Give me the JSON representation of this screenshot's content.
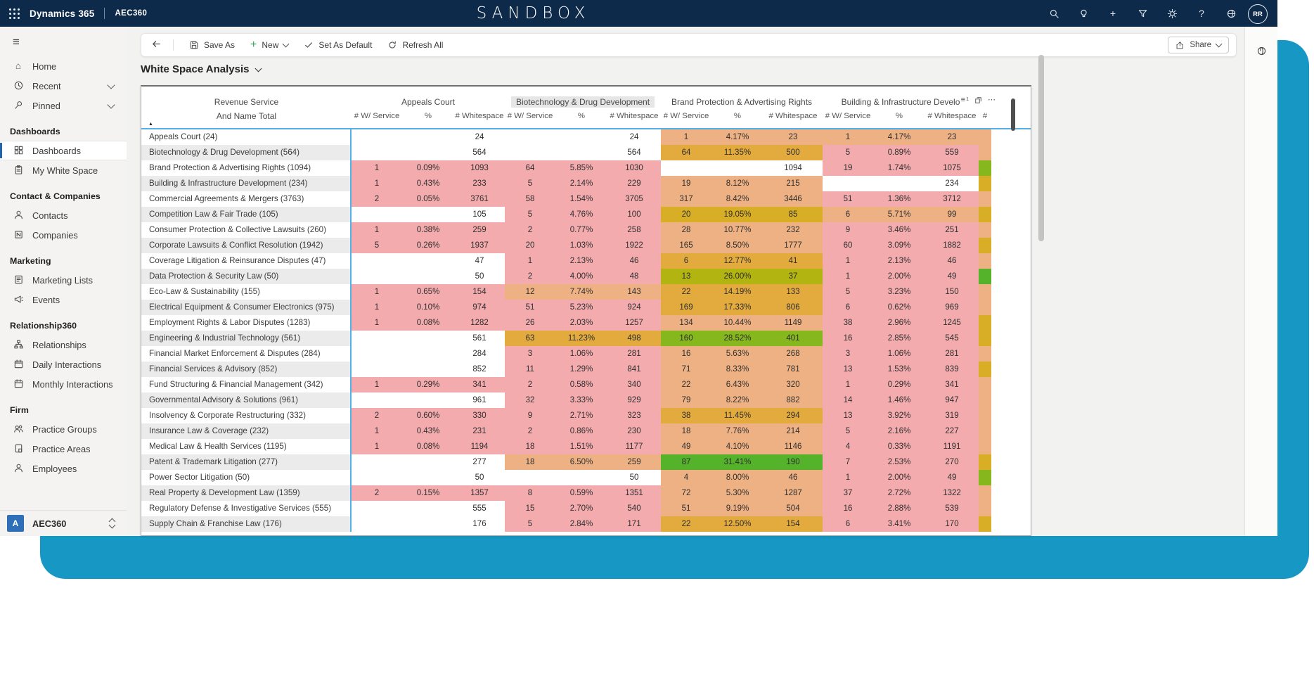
{
  "topbar": {
    "brand": "Dynamics 365",
    "app": "AEC360",
    "environment": "SANDBOX",
    "avatar_initials": "RR",
    "icons": [
      "search-icon",
      "lightbulb-icon",
      "add-icon",
      "funnel-icon",
      "settings-icon",
      "help-icon",
      "feedback-icon"
    ]
  },
  "commandbar": {
    "save_as": "Save As",
    "new": "New",
    "set_as_default": "Set As Default",
    "refresh_all": "Refresh All",
    "share": "Share"
  },
  "page": {
    "title": "White Space Analysis"
  },
  "sidebar": {
    "sections": [
      {
        "header": "",
        "items": [
          {
            "label": "Home",
            "icon": "home-icon"
          },
          {
            "label": "Recent",
            "icon": "clock-icon",
            "chevron": true
          },
          {
            "label": "Pinned",
            "icon": "pin-icon",
            "chevron": true
          }
        ]
      },
      {
        "header": "Dashboards",
        "items": [
          {
            "label": "Dashboards",
            "icon": "dashboards-icon",
            "selected": true
          },
          {
            "label": "My White Space",
            "icon": "clipboard-icon"
          }
        ]
      },
      {
        "header": "Contact & Companies",
        "items": [
          {
            "label": "Contacts",
            "icon": "person-icon"
          },
          {
            "label": "Companies",
            "icon": "company-icon"
          }
        ]
      },
      {
        "header": "Marketing",
        "items": [
          {
            "label": "Marketing Lists",
            "icon": "list-icon"
          },
          {
            "label": "Events",
            "icon": "megaphone-icon"
          }
        ]
      },
      {
        "header": "Relationship360",
        "items": [
          {
            "label": "Relationships",
            "icon": "orgchart-icon"
          },
          {
            "label": "Daily Interactions",
            "icon": "calendar-icon"
          },
          {
            "label": "Monthly Interactions",
            "icon": "calendar-icon"
          }
        ]
      },
      {
        "header": "Firm",
        "items": [
          {
            "label": "Practice Groups",
            "icon": "people-icon"
          },
          {
            "label": "Practice Areas",
            "icon": "doc-icon"
          },
          {
            "label": "Employees",
            "icon": "person-icon"
          }
        ]
      }
    ],
    "app_switcher": {
      "initial": "A",
      "label": "AEC360"
    }
  },
  "table": {
    "col1": {
      "line1": "Revenue Service",
      "line2": "And Name Total"
    },
    "groups": [
      "Appeals Court",
      "Biotechnology & Drug Development",
      "Brand Protection & Advertising Rights",
      "Building & Infrastructure Develo"
    ],
    "highlighted_group": 1,
    "subheaders": [
      "# W/ Service",
      "%",
      "# Whitespace"
    ],
    "next_group_partial": "#",
    "corner_icons": [
      "filter-icon",
      "focus-mode-icon",
      "more-options-icon"
    ],
    "cell_colors": {
      "white": "#ffffff",
      "pink": "#f3abae",
      "tan": "#eeb183",
      "amber": "#e3aa3e",
      "darkamber": "#d8ae27",
      "olive": "#b2b411",
      "green": "#86b81e",
      "brightgreen": "#54b32a"
    },
    "rows": [
      {
        "label": "Appeals Court (24)",
        "groups": [
          [
            "",
            "",
            24,
            "white"
          ],
          [
            "",
            "",
            24,
            "white"
          ],
          [
            "1",
            "4.17%",
            23,
            "tan"
          ],
          [
            "1",
            "4.17%",
            23,
            "tan"
          ]
        ],
        "strip": "tan"
      },
      {
        "label": "Biotechnology & Drug Development (564)",
        "groups": [
          [
            "",
            "",
            564,
            "white"
          ],
          [
            "",
            "",
            564,
            "white"
          ],
          [
            "64",
            "11.35%",
            500,
            "amber"
          ],
          [
            "5",
            "0.89%",
            559,
            "pink"
          ]
        ],
        "strip": "tan"
      },
      {
        "label": "Brand Protection & Advertising Rights (1094)",
        "groups": [
          [
            "1",
            "0.09%",
            1093,
            "pink"
          ],
          [
            "64",
            "5.85%",
            1030,
            "pink"
          ],
          [
            "",
            "",
            1094,
            "white"
          ],
          [
            "19",
            "1.74%",
            1075,
            "pink"
          ]
        ],
        "strip": "green"
      },
      {
        "label": "Building & Infrastructure Development (234)",
        "groups": [
          [
            "1",
            "0.43%",
            233,
            "pink"
          ],
          [
            "5",
            "2.14%",
            229,
            "pink"
          ],
          [
            "19",
            "8.12%",
            215,
            "tan"
          ],
          [
            "",
            "",
            234,
            "white"
          ]
        ],
        "strip": "darkamber"
      },
      {
        "label": "Commercial Agreements & Mergers (3763)",
        "groups": [
          [
            "2",
            "0.05%",
            3761,
            "pink"
          ],
          [
            "58",
            "1.54%",
            3705,
            "pink"
          ],
          [
            "317",
            "8.42%",
            3446,
            "tan"
          ],
          [
            "51",
            "1.36%",
            3712,
            "pink"
          ]
        ],
        "strip": "tan"
      },
      {
        "label": "Competition Law & Fair Trade (105)",
        "groups": [
          [
            "",
            "",
            105,
            "white"
          ],
          [
            "5",
            "4.76%",
            100,
            "pink"
          ],
          [
            "20",
            "19.05%",
            85,
            "darkamber"
          ],
          [
            "6",
            "5.71%",
            99,
            "tan"
          ]
        ],
        "strip": "darkamber"
      },
      {
        "label": "Consumer Protection & Collective Lawsuits (260)",
        "groups": [
          [
            "1",
            "0.38%",
            259,
            "pink"
          ],
          [
            "2",
            "0.77%",
            258,
            "pink"
          ],
          [
            "28",
            "10.77%",
            232,
            "tan"
          ],
          [
            "9",
            "3.46%",
            251,
            "pink"
          ]
        ],
        "strip": "tan"
      },
      {
        "label": "Corporate Lawsuits & Conflict Resolution (1942)",
        "groups": [
          [
            "5",
            "0.26%",
            1937,
            "pink"
          ],
          [
            "20",
            "1.03%",
            1922,
            "pink"
          ],
          [
            "165",
            "8.50%",
            1777,
            "tan"
          ],
          [
            "60",
            "3.09%",
            1882,
            "pink"
          ]
        ],
        "strip": "darkamber"
      },
      {
        "label": "Coverage Litigation & Reinsurance Disputes (47)",
        "groups": [
          [
            "",
            "",
            47,
            "white"
          ],
          [
            "1",
            "2.13%",
            46,
            "pink"
          ],
          [
            "6",
            "12.77%",
            41,
            "amber"
          ],
          [
            "1",
            "2.13%",
            46,
            "pink"
          ]
        ],
        "strip": "tan"
      },
      {
        "label": "Data Protection & Security Law (50)",
        "groups": [
          [
            "",
            "",
            50,
            "white"
          ],
          [
            "2",
            "4.00%",
            48,
            "pink"
          ],
          [
            "13",
            "26.00%",
            37,
            "olive"
          ],
          [
            "1",
            "2.00%",
            49,
            "pink"
          ]
        ],
        "strip": "brightgreen"
      },
      {
        "label": "Eco-Law & Sustainability (155)",
        "groups": [
          [
            "1",
            "0.65%",
            154,
            "pink"
          ],
          [
            "12",
            "7.74%",
            143,
            "tan"
          ],
          [
            "22",
            "14.19%",
            133,
            "amber"
          ],
          [
            "5",
            "3.23%",
            150,
            "pink"
          ]
        ],
        "strip": "tan"
      },
      {
        "label": "Electrical Equipment & Consumer Electronics (975)",
        "groups": [
          [
            "1",
            "0.10%",
            974,
            "pink"
          ],
          [
            "51",
            "5.23%",
            924,
            "pink"
          ],
          [
            "169",
            "17.33%",
            806,
            "amber"
          ],
          [
            "6",
            "0.62%",
            969,
            "pink"
          ]
        ],
        "strip": "tan"
      },
      {
        "label": "Employment Rights & Labor Disputes (1283)",
        "groups": [
          [
            "1",
            "0.08%",
            1282,
            "pink"
          ],
          [
            "26",
            "2.03%",
            1257,
            "pink"
          ],
          [
            "134",
            "10.44%",
            1149,
            "tan"
          ],
          [
            "38",
            "2.96%",
            1245,
            "pink"
          ]
        ],
        "strip": "darkamber"
      },
      {
        "label": "Engineering & Industrial Technology (561)",
        "groups": [
          [
            "",
            "",
            561,
            "white"
          ],
          [
            "63",
            "11.23%",
            498,
            "amber"
          ],
          [
            "160",
            "28.52%",
            401,
            "green"
          ],
          [
            "16",
            "2.85%",
            545,
            "pink"
          ]
        ],
        "strip": "darkamber"
      },
      {
        "label": "Financial Market Enforcement & Disputes (284)",
        "groups": [
          [
            "",
            "",
            284,
            "white"
          ],
          [
            "3",
            "1.06%",
            281,
            "pink"
          ],
          [
            "16",
            "5.63%",
            268,
            "tan"
          ],
          [
            "3",
            "1.06%",
            281,
            "pink"
          ]
        ],
        "strip": "tan"
      },
      {
        "label": "Financial Services & Advisory (852)",
        "groups": [
          [
            "",
            "",
            852,
            "white"
          ],
          [
            "11",
            "1.29%",
            841,
            "pink"
          ],
          [
            "71",
            "8.33%",
            781,
            "tan"
          ],
          [
            "13",
            "1.53%",
            839,
            "pink"
          ]
        ],
        "strip": "darkamber"
      },
      {
        "label": "Fund Structuring & Financial Management (342)",
        "groups": [
          [
            "1",
            "0.29%",
            341,
            "pink"
          ],
          [
            "2",
            "0.58%",
            340,
            "pink"
          ],
          [
            "22",
            "6.43%",
            320,
            "tan"
          ],
          [
            "1",
            "0.29%",
            341,
            "pink"
          ]
        ],
        "strip": "tan"
      },
      {
        "label": "Governmental Advisory & Solutions (961)",
        "groups": [
          [
            "",
            "",
            961,
            "white"
          ],
          [
            "32",
            "3.33%",
            929,
            "pink"
          ],
          [
            "79",
            "8.22%",
            882,
            "tan"
          ],
          [
            "14",
            "1.46%",
            947,
            "pink"
          ]
        ],
        "strip": "tan"
      },
      {
        "label": "Insolvency & Corporate Restructuring (332)",
        "groups": [
          [
            "2",
            "0.60%",
            330,
            "pink"
          ],
          [
            "9",
            "2.71%",
            323,
            "pink"
          ],
          [
            "38",
            "11.45%",
            294,
            "amber"
          ],
          [
            "13",
            "3.92%",
            319,
            "pink"
          ]
        ],
        "strip": "tan"
      },
      {
        "label": "Insurance Law & Coverage (232)",
        "groups": [
          [
            "1",
            "0.43%",
            231,
            "pink"
          ],
          [
            "2",
            "0.86%",
            230,
            "pink"
          ],
          [
            "18",
            "7.76%",
            214,
            "tan"
          ],
          [
            "5",
            "2.16%",
            227,
            "pink"
          ]
        ],
        "strip": "tan"
      },
      {
        "label": "Medical Law & Health Services (1195)",
        "groups": [
          [
            "1",
            "0.08%",
            1194,
            "pink"
          ],
          [
            "18",
            "1.51%",
            1177,
            "pink"
          ],
          [
            "49",
            "4.10%",
            1146,
            "tan"
          ],
          [
            "4",
            "0.33%",
            1191,
            "pink"
          ]
        ],
        "strip": "tan"
      },
      {
        "label": "Patent & Trademark Litigation (277)",
        "groups": [
          [
            "",
            "",
            277,
            "white"
          ],
          [
            "18",
            "6.50%",
            259,
            "tan"
          ],
          [
            "87",
            "31.41%",
            190,
            "brightgreen"
          ],
          [
            "7",
            "2.53%",
            270,
            "pink"
          ]
        ],
        "strip": "darkamber"
      },
      {
        "label": "Power Sector Litigation (50)",
        "groups": [
          [
            "",
            "",
            50,
            "white"
          ],
          [
            "",
            "",
            50,
            "white"
          ],
          [
            "4",
            "8.00%",
            46,
            "tan"
          ],
          [
            "1",
            "2.00%",
            49,
            "pink"
          ]
        ],
        "strip": "green"
      },
      {
        "label": "Real Property & Development Law (1359)",
        "groups": [
          [
            "2",
            "0.15%",
            1357,
            "pink"
          ],
          [
            "8",
            "0.59%",
            1351,
            "pink"
          ],
          [
            "72",
            "5.30%",
            1287,
            "tan"
          ],
          [
            "37",
            "2.72%",
            1322,
            "pink"
          ]
        ],
        "strip": "tan"
      },
      {
        "label": "Regulatory Defense & Investigative Services (555)",
        "groups": [
          [
            "",
            "",
            555,
            "white"
          ],
          [
            "15",
            "2.70%",
            540,
            "pink"
          ],
          [
            "51",
            "9.19%",
            504,
            "tan"
          ],
          [
            "16",
            "2.88%",
            539,
            "pink"
          ]
        ],
        "strip": "tan"
      },
      {
        "label": "Supply Chain & Franchise Law (176)",
        "groups": [
          [
            "",
            "",
            176,
            "white"
          ],
          [
            "5",
            "2.84%",
            171,
            "pink"
          ],
          [
            "22",
            "12.50%",
            154,
            "amber"
          ],
          [
            "6",
            "3.41%",
            170,
            "pink"
          ]
        ],
        "strip": "darkamber"
      }
    ]
  },
  "colors": {
    "teal_background": "#1697c4",
    "navy_header": "#0e2a4a",
    "table_divider_blue": "#56b0e8",
    "selected_nav_blue": "#2166ad"
  }
}
